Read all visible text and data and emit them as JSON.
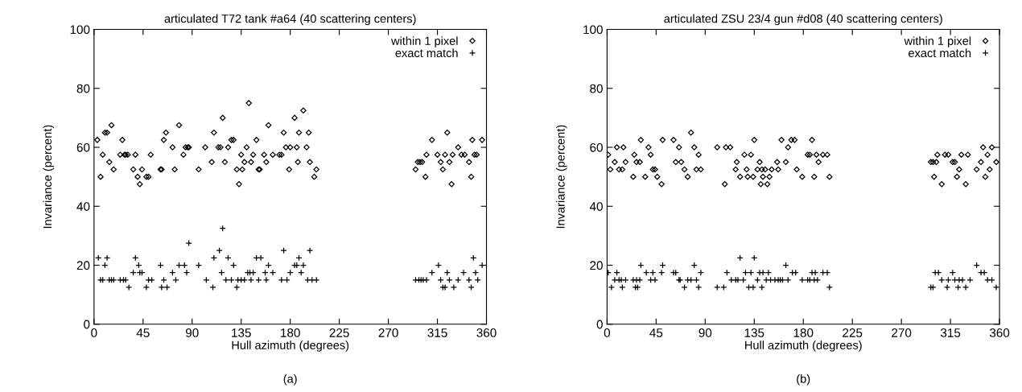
{
  "chart_data": [
    {
      "type": "scatter",
      "title": "articulated T72 tank #a64 (40 scattering centers)",
      "xlabel": "Hull azimuth (degrees)",
      "ylabel": "Invariance (percent)",
      "annotations": [
        "(a)"
      ],
      "xlim": [
        0,
        360
      ],
      "xticks": [
        0,
        45,
        90,
        135,
        180,
        225,
        270,
        315,
        360
      ],
      "ylim": [
        0,
        100
      ],
      "yticks": [
        0,
        20,
        40,
        60,
        80,
        100
      ],
      "grid": false,
      "legend": "top right",
      "series": [
        {
          "name": "within 1 pixel",
          "color": "#000000",
          "marker": "diamond",
          "x": [
            3,
            6,
            8,
            10,
            12,
            14,
            16,
            18,
            24,
            26,
            28,
            29,
            31,
            36,
            38,
            40,
            42,
            44,
            48,
            50,
            52,
            61,
            62,
            64,
            66,
            72,
            74,
            78,
            82,
            84,
            86,
            87,
            96,
            102,
            108,
            110,
            114,
            116,
            118,
            120,
            123,
            126,
            128,
            131,
            133,
            135,
            136,
            138,
            140,
            142,
            144,
            146,
            149,
            151,
            152,
            156,
            158,
            160,
            164,
            170,
            172,
            174,
            176,
            179,
            180,
            184,
            186,
            187,
            188,
            192,
            195,
            197,
            198,
            202,
            204,
            295,
            297,
            299,
            301,
            304,
            305,
            310,
            315,
            318,
            320,
            322,
            324,
            326,
            328,
            329,
            334,
            337,
            340,
            344,
            346,
            347,
            349,
            351,
            356
          ],
          "values": [
            62.5,
            50,
            57.5,
            65,
            65,
            55,
            67.5,
            52.5,
            57.5,
            62.5,
            57.5,
            57.5,
            57.5,
            52.5,
            57.5,
            50,
            47.5,
            52.5,
            50,
            50,
            57.5,
            52.5,
            52.5,
            62.5,
            65,
            60,
            52.5,
            67.5,
            57.5,
            60,
            60,
            60,
            52.5,
            60,
            55,
            65,
            60,
            60,
            70,
            55,
            60,
            62.5,
            62.5,
            52.5,
            47.5,
            57.5,
            52.5,
            55,
            60,
            75,
            55,
            57.5,
            62.5,
            52.5,
            52.5,
            57.5,
            55,
            67.5,
            57.5,
            57.5,
            57.5,
            65,
            60,
            52.5,
            60,
            70,
            60,
            55,
            65,
            72.5,
            60,
            65,
            55,
            50,
            52.5,
            52.5,
            55,
            55,
            55,
            50,
            57.5,
            62.5,
            57.5,
            55,
            52.5,
            57.5,
            65,
            55,
            47.5,
            57.5,
            60,
            57.5,
            57.5,
            55,
            50,
            62.5,
            57.5,
            57.5,
            62.5
          ]
        },
        {
          "name": "exact match",
          "color": "#000000",
          "marker": "cross",
          "x": [
            4,
            6,
            8,
            10,
            12,
            14,
            16,
            18,
            24,
            27,
            29,
            32,
            36,
            38,
            41,
            42,
            44,
            48,
            50,
            53,
            61,
            62,
            64,
            67,
            72,
            75,
            78,
            83,
            85,
            87,
            96,
            103,
            109,
            110,
            115,
            117,
            118,
            121,
            123,
            126,
            128,
            131,
            132,
            135,
            138,
            141,
            143,
            144,
            146,
            149,
            151,
            153,
            157,
            158,
            160,
            164,
            172,
            174,
            177,
            180,
            184,
            186,
            188,
            190,
            192,
            196,
            198,
            200,
            204,
            295,
            298,
            300,
            302,
            305,
            310,
            316,
            318,
            320,
            322,
            324,
            326,
            330,
            334,
            339,
            344,
            346,
            348,
            350,
            352,
            356
          ],
          "values": [
            22.5,
            15,
            15,
            20,
            22.5,
            15,
            15,
            15,
            15,
            15,
            15,
            12.5,
            17.5,
            22.5,
            20,
            17.5,
            17.5,
            12.5,
            15,
            15,
            20,
            12.5,
            15,
            12.5,
            17.5,
            15,
            20,
            20,
            17.5,
            27.5,
            20,
            15,
            12.5,
            22.5,
            25,
            17.5,
            32.5,
            15,
            22.5,
            15,
            20,
            12.5,
            15,
            15,
            15,
            17.5,
            17.5,
            15,
            17.5,
            22.5,
            15,
            22.5,
            17.5,
            15,
            20,
            17.5,
            15,
            25,
            15,
            17.5,
            20,
            20,
            22.5,
            17.5,
            20,
            15,
            25,
            15,
            15,
            15,
            15,
            15,
            15,
            15,
            17.5,
            20,
            15,
            12.5,
            12.5,
            17.5,
            15,
            12.5,
            15,
            17.5,
            15,
            12.5,
            22.5,
            17.5,
            15,
            20
          ]
        }
      ]
    },
    {
      "type": "scatter",
      "title": "articulated ZSU 23/4 gun #d08 (40 scattering centers)",
      "xlabel": "Hull azimuth (degrees)",
      "ylabel": "Invariance (percent)",
      "annotations": [
        "(b)"
      ],
      "xlim": [
        0,
        360
      ],
      "xticks": [
        0,
        45,
        90,
        135,
        180,
        225,
        270,
        315,
        360
      ],
      "ylim": [
        0,
        100
      ],
      "yticks": [
        0,
        20,
        40,
        60,
        80,
        100
      ],
      "grid": false,
      "legend": "top right",
      "series": [
        {
          "name": "within 1 pixel",
          "color": "#000000",
          "marker": "diamond",
          "x": [
            1,
            3,
            7,
            9,
            11,
            14,
            15,
            17,
            24,
            25,
            27,
            30,
            31,
            35,
            38,
            40,
            42,
            44,
            46,
            50,
            51,
            61,
            63,
            66,
            68,
            71,
            74,
            77,
            80,
            82,
            84,
            86,
            101,
            108,
            109,
            113,
            118,
            119,
            122,
            126,
            128,
            129,
            132,
            134,
            135,
            138,
            140,
            141,
            142,
            143,
            145,
            147,
            149,
            151,
            156,
            157,
            160,
            164,
            166,
            169,
            172,
            174,
            179,
            184,
            186,
            188,
            190,
            192,
            194,
            198,
            202,
            204,
            297,
            299,
            300,
            302,
            303,
            307,
            310,
            313,
            317,
            319,
            321,
            323,
            325,
            329,
            331,
            339,
            343,
            345,
            347,
            349,
            351,
            353,
            357
          ],
          "values": [
            57.5,
            52.5,
            55,
            60,
            52.5,
            52.5,
            60,
            55,
            50,
            57.5,
            55,
            55,
            62.5,
            50,
            60,
            57.5,
            52.5,
            52.5,
            50,
            47.5,
            62.5,
            62.5,
            55,
            60,
            55,
            52.5,
            50,
            65,
            60,
            52.5,
            57.5,
            52.5,
            60,
            47.5,
            60,
            60,
            52.5,
            55,
            50,
            57.5,
            52.5,
            50,
            57.5,
            50,
            62.5,
            52.5,
            55,
            47.5,
            52.5,
            50,
            52.5,
            47.5,
            50,
            52.5,
            55,
            52.5,
            62.5,
            55,
            60,
            62.5,
            62.5,
            52.5,
            50,
            57.5,
            57.5,
            62.5,
            50,
            57.5,
            55,
            57.5,
            57.5,
            50,
            55,
            55,
            50,
            55,
            57.5,
            47.5,
            57.5,
            57.5,
            55,
            55,
            50,
            52.5,
            57.5,
            47.5,
            57.5,
            52.5,
            55,
            60,
            50,
            57.5,
            52.5,
            60,
            55
          ]
        },
        {
          "name": "exact match",
          "color": "#000000",
          "marker": "cross",
          "x": [
            1,
            4,
            7,
            9,
            11,
            13,
            14,
            17,
            24,
            27,
            26,
            28,
            30,
            31,
            36,
            40,
            42,
            44,
            50,
            51,
            61,
            63,
            66,
            67,
            71,
            74,
            77,
            80,
            82,
            84,
            86,
            101,
            107,
            110,
            114,
            118,
            120,
            122,
            125,
            127,
            130,
            132,
            134,
            135,
            138,
            140,
            142,
            143,
            146,
            148,
            150,
            154,
            157,
            159,
            161,
            164,
            166,
            170,
            173,
            179,
            184,
            186,
            188,
            190,
            191,
            193,
            198,
            202,
            204,
            297,
            299,
            301,
            304,
            307,
            312,
            313,
            317,
            319,
            322,
            323,
            326,
            329,
            333,
            339,
            343,
            346,
            349,
            353,
            357
          ],
          "values": [
            17.5,
            12.5,
            15,
            17.5,
            15,
            15,
            12.5,
            15,
            15,
            15,
            12.5,
            12.5,
            15,
            20,
            17.5,
            15,
            17.5,
            15,
            17.5,
            20,
            17.5,
            17.5,
            15,
            15,
            12.5,
            15,
            15,
            20,
            15,
            12.5,
            17.5,
            12.5,
            12.5,
            17.5,
            15,
            15,
            15,
            22.5,
            15,
            17.5,
            12.5,
            17.5,
            12.5,
            22.5,
            15,
            17.5,
            12.5,
            17.5,
            15,
            17.5,
            15,
            15,
            15,
            15,
            15,
            20,
            15,
            17.5,
            17.5,
            15,
            15,
            15,
            17.5,
            15,
            17.5,
            15,
            17.5,
            17.5,
            12.5,
            12.5,
            12.5,
            17.5,
            17.5,
            15,
            12.5,
            15,
            17.5,
            15,
            12.5,
            15,
            15,
            12.5,
            15,
            20,
            17.5,
            17.5,
            15,
            15,
            12.5
          ]
        }
      ]
    }
  ]
}
